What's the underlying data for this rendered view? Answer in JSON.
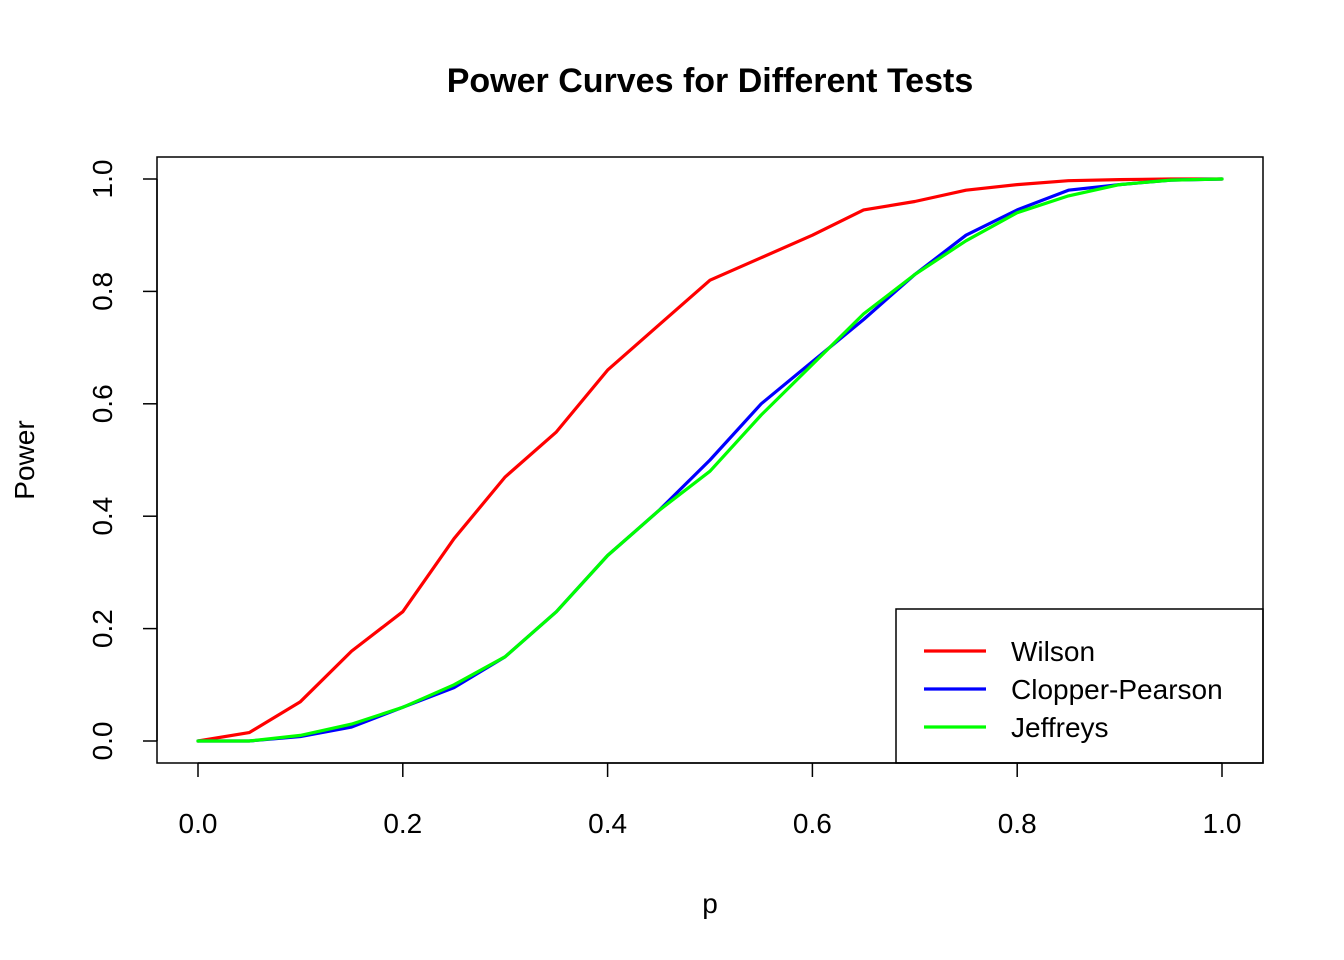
{
  "chart_data": {
    "type": "line",
    "title": "Power Curves for Different Tests",
    "xlabel": "p",
    "ylabel": "Power",
    "xlim": [
      0,
      1
    ],
    "ylim": [
      0,
      1
    ],
    "xticks": [
      "0.0",
      "0.2",
      "0.4",
      "0.6",
      "0.8",
      "1.0"
    ],
    "yticks": [
      "0.0",
      "0.2",
      "0.4",
      "0.6",
      "0.8",
      "1.0"
    ],
    "grid": false,
    "legend_position": "bottom-right",
    "x": [
      0.0,
      0.05,
      0.1,
      0.15,
      0.2,
      0.25,
      0.3,
      0.35,
      0.4,
      0.45,
      0.5,
      0.55,
      0.6,
      0.65,
      0.7,
      0.75,
      0.8,
      0.85,
      0.9,
      0.95,
      1.0
    ],
    "series": [
      {
        "name": "Wilson",
        "color": "#ff0000",
        "values": [
          0.0,
          0.015,
          0.07,
          0.16,
          0.23,
          0.36,
          0.47,
          0.55,
          0.66,
          0.74,
          0.82,
          0.86,
          0.9,
          0.945,
          0.96,
          0.98,
          0.99,
          0.997,
          0.999,
          1.0,
          1.0
        ]
      },
      {
        "name": "Clopper-Pearson",
        "color": "#0000ff",
        "values": [
          0.0,
          0.0,
          0.008,
          0.025,
          0.06,
          0.095,
          0.15,
          0.23,
          0.33,
          0.41,
          0.5,
          0.6,
          0.675,
          0.75,
          0.83,
          0.9,
          0.945,
          0.98,
          0.99,
          0.998,
          1.0
        ]
      },
      {
        "name": "Jeffreys",
        "color": "#00ff00",
        "values": [
          0.0,
          0.0,
          0.01,
          0.03,
          0.06,
          0.1,
          0.15,
          0.23,
          0.33,
          0.41,
          0.48,
          0.58,
          0.67,
          0.76,
          0.83,
          0.89,
          0.94,
          0.97,
          0.99,
          0.998,
          1.0
        ]
      }
    ]
  }
}
